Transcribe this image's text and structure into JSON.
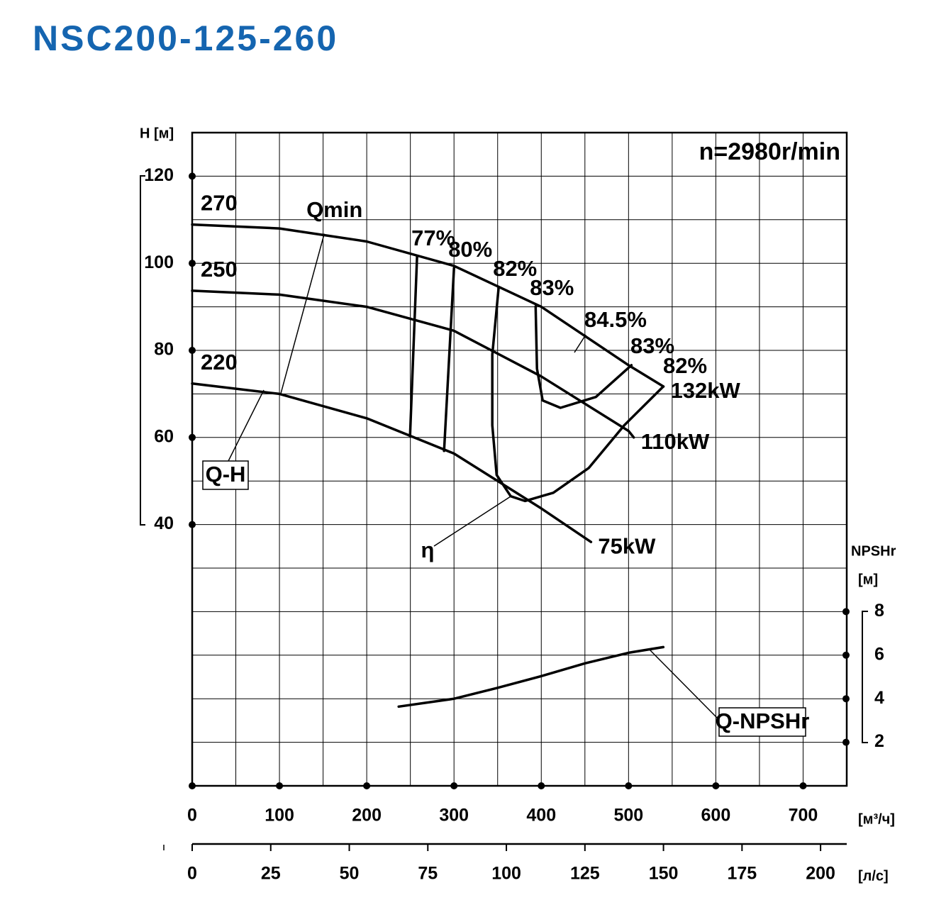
{
  "chart_data": {
    "type": "line",
    "title": "NSC200-125-260",
    "subtitle": "n=2980r/min",
    "xlabel": "[м³/ч]",
    "x2label": "[л/с]",
    "ylabel": "H [м]",
    "y2label": [
      "NPSHr",
      "[м]"
    ],
    "xlim": [
      0,
      750
    ],
    "xticks": [
      0,
      100,
      200,
      300,
      400,
      500,
      600,
      700
    ],
    "x2lim": [
      0,
      208.33
    ],
    "x2ticks": [
      0,
      25,
      50,
      75,
      100,
      125,
      150,
      175,
      200
    ],
    "ylim": [
      -20,
      130
    ],
    "yticks": [
      40,
      60,
      80,
      100,
      120
    ],
    "y2lim": [
      0,
      30
    ],
    "y2ticks": [
      2,
      4,
      6,
      8
    ],
    "grid": true,
    "xgrid": [
      50,
      100,
      150,
      200,
      250,
      300,
      350,
      400,
      450,
      500,
      550,
      600,
      650,
      700
    ],
    "ygrid": [
      -10,
      0,
      10,
      20,
      30,
      40,
      50,
      60,
      70,
      80,
      90,
      100,
      110,
      120
    ],
    "color": "#000000",
    "title_color": "#1565b0",
    "head_curves": [
      {
        "name": "270",
        "power": "132kW",
        "x": [
          0,
          100,
          200,
          300,
          400,
          500,
          540
        ],
        "values": [
          108.9,
          108,
          105,
          99.4,
          90,
          76.6,
          71.7
        ]
      },
      {
        "name": "250",
        "power": "110kW",
        "x": [
          0,
          100,
          200,
          300,
          400,
          500,
          506
        ],
        "values": [
          93.7,
          92.8,
          90,
          84.5,
          74,
          61.5,
          60
        ]
      },
      {
        "name": "220",
        "power": "75kW",
        "x": [
          0,
          100,
          200,
          300,
          400,
          457
        ],
        "values": [
          72.4,
          70,
          64.4,
          56.3,
          43.7,
          36
        ]
      }
    ],
    "efficiency_curves": [
      {
        "name": "77%",
        "x": [
          257.7,
          249.6
        ],
        "values": [
          101.5,
          60.3
        ]
      },
      {
        "name": "80%",
        "x": [
          300,
          288.6
        ],
        "values": [
          98.9,
          56.9
        ]
      },
      {
        "name": "82%",
        "x": [
          351.2,
          343.9,
          343.9,
          348.8,
          365,
          381.3,
          413.8,
          454.5,
          495.1,
          539.8
        ],
        "values": [
          94.5,
          79,
          62.8,
          51.4,
          46.5,
          45.4,
          47.3,
          53,
          62.8,
          71.7
        ]
      },
      {
        "name": "83%",
        "x": [
          393.5,
          395.1,
          401.6,
          422,
          462.6,
          503.3
        ],
        "values": [
          90.1,
          75.8,
          68.5,
          66.8,
          69.3,
          76.6
        ]
      }
    ],
    "qmin": {
      "name": "Qmin",
      "x": [
        151.2,
        101.6
      ],
      "values": [
        106.7,
        70.1
      ]
    },
    "npsh": {
      "name": "Q-NPSHr",
      "axis": "y2",
      "x": [
        236.6,
        300,
        348.8,
        400,
        450.4,
        500,
        539.8
      ],
      "values": [
        3.64,
        4.0,
        4.49,
        5.04,
        5.63,
        6.11,
        6.37
      ]
    },
    "labels": {
      "qh": "Q-H",
      "eta": "η",
      "right_efficiency": [
        "84.5%",
        "83%",
        "82%"
      ]
    }
  }
}
